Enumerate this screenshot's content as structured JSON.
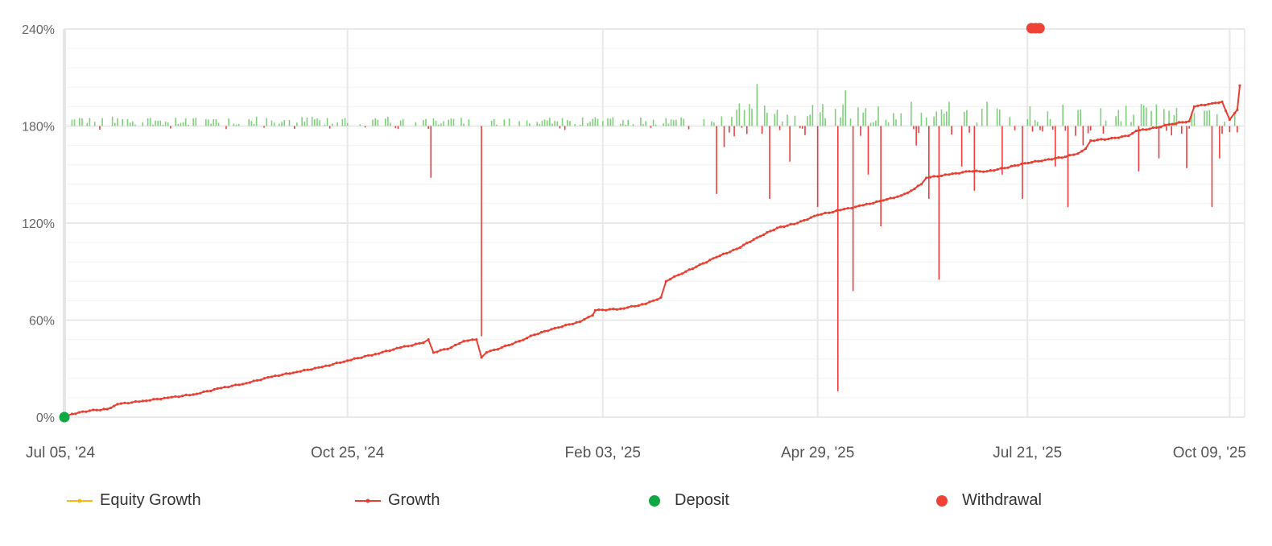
{
  "chart_data": {
    "type": "line",
    "x_axis": {
      "type": "date",
      "min": "2024-07-05",
      "max": "2025-10-13",
      "tick_labels": [
        "Jul 05, '24",
        "Oct 25, '24",
        "Feb 03, '25",
        "Apr 29, '25",
        "Jul 21, '25",
        "Oct 09, '25"
      ],
      "tick_dates": [
        "2024-07-05",
        "2024-10-25",
        "2025-02-03",
        "2025-04-29",
        "2025-07-21",
        "2025-10-09"
      ]
    },
    "y_axis": {
      "unit": "%",
      "min": 0,
      "max": 240,
      "tick_values": [
        0,
        60,
        120,
        180,
        240
      ],
      "tick_labels": [
        "0%",
        "60%",
        "120%",
        "180%",
        "240%"
      ]
    },
    "grid": true,
    "legend_position": "bottom",
    "series": [
      {
        "name": "Equity Growth",
        "type": "line",
        "color": "#f5b915",
        "points": []
      },
      {
        "name": "Growth",
        "type": "line",
        "color": "#e74032",
        "points": [
          [
            "2024-07-05",
            0
          ],
          [
            "2024-07-08",
            2
          ],
          [
            "2024-07-15",
            4
          ],
          [
            "2024-07-22",
            5
          ],
          [
            "2024-07-26",
            8
          ],
          [
            "2024-08-05",
            10
          ],
          [
            "2024-08-15",
            12
          ],
          [
            "2024-08-25",
            14
          ],
          [
            "2024-09-05",
            18
          ],
          [
            "2024-09-15",
            21
          ],
          [
            "2024-09-25",
            25
          ],
          [
            "2024-10-05",
            28
          ],
          [
            "2024-10-15",
            31
          ],
          [
            "2024-10-25",
            35
          ],
          [
            "2024-11-05",
            39
          ],
          [
            "2024-11-15",
            43
          ],
          [
            "2024-11-24",
            46
          ],
          [
            "2024-11-26",
            48
          ],
          [
            "2024-11-28",
            40
          ],
          [
            "2024-12-05",
            43
          ],
          [
            "2024-12-10",
            47
          ],
          [
            "2024-12-15",
            48
          ],
          [
            "2024-12-17",
            37
          ],
          [
            "2024-12-19",
            40
          ],
          [
            "2024-12-25",
            43
          ],
          [
            "2025-01-01",
            47
          ],
          [
            "2025-01-07",
            51
          ],
          [
            "2025-01-15",
            55
          ],
          [
            "2025-01-25",
            59
          ],
          [
            "2025-01-30",
            63
          ],
          [
            "2025-01-31",
            66
          ],
          [
            "2025-02-10",
            67
          ],
          [
            "2025-02-20",
            70
          ],
          [
            "2025-02-26",
            74
          ],
          [
            "2025-02-28",
            84
          ],
          [
            "2025-03-05",
            88
          ],
          [
            "2025-03-12",
            93
          ],
          [
            "2025-03-20",
            99
          ],
          [
            "2025-03-28",
            104
          ],
          [
            "2025-04-05",
            111
          ],
          [
            "2025-04-13",
            117
          ],
          [
            "2025-04-21",
            120
          ],
          [
            "2025-04-29",
            125
          ],
          [
            "2025-05-08",
            128
          ],
          [
            "2025-05-17",
            131
          ],
          [
            "2025-05-25",
            134
          ],
          [
            "2025-06-01",
            137
          ],
          [
            "2025-06-05",
            140
          ],
          [
            "2025-06-09",
            144
          ],
          [
            "2025-06-11",
            148
          ],
          [
            "2025-06-20",
            150
          ],
          [
            "2025-06-28",
            152
          ],
          [
            "2025-07-05",
            152
          ],
          [
            "2025-07-12",
            154
          ],
          [
            "2025-07-20",
            157
          ],
          [
            "2025-07-28",
            159
          ],
          [
            "2025-08-05",
            161
          ],
          [
            "2025-08-10",
            163
          ],
          [
            "2025-08-13",
            166
          ],
          [
            "2025-08-15",
            171
          ],
          [
            "2025-08-22",
            172
          ],
          [
            "2025-08-30",
            174
          ],
          [
            "2025-09-02",
            177
          ],
          [
            "2025-09-10",
            179
          ],
          [
            "2025-09-15",
            181
          ],
          [
            "2025-09-23",
            183
          ],
          [
            "2025-09-25",
            192
          ],
          [
            "2025-10-02",
            194
          ],
          [
            "2025-10-06",
            195
          ],
          [
            "2025-10-09",
            184
          ],
          [
            "2025-10-11",
            188
          ],
          [
            "2025-10-12",
            190
          ],
          [
            "2025-10-13",
            205
          ]
        ]
      },
      {
        "name": "Deposit",
        "type": "marker",
        "color": "#10a844",
        "points": [
          [
            "2024-07-05",
            0
          ]
        ]
      },
      {
        "name": "Withdrawal",
        "type": "marker",
        "color": "#ef4136",
        "points": [
          [
            "2025-07-21",
            240
          ]
        ]
      }
    ]
  }
}
